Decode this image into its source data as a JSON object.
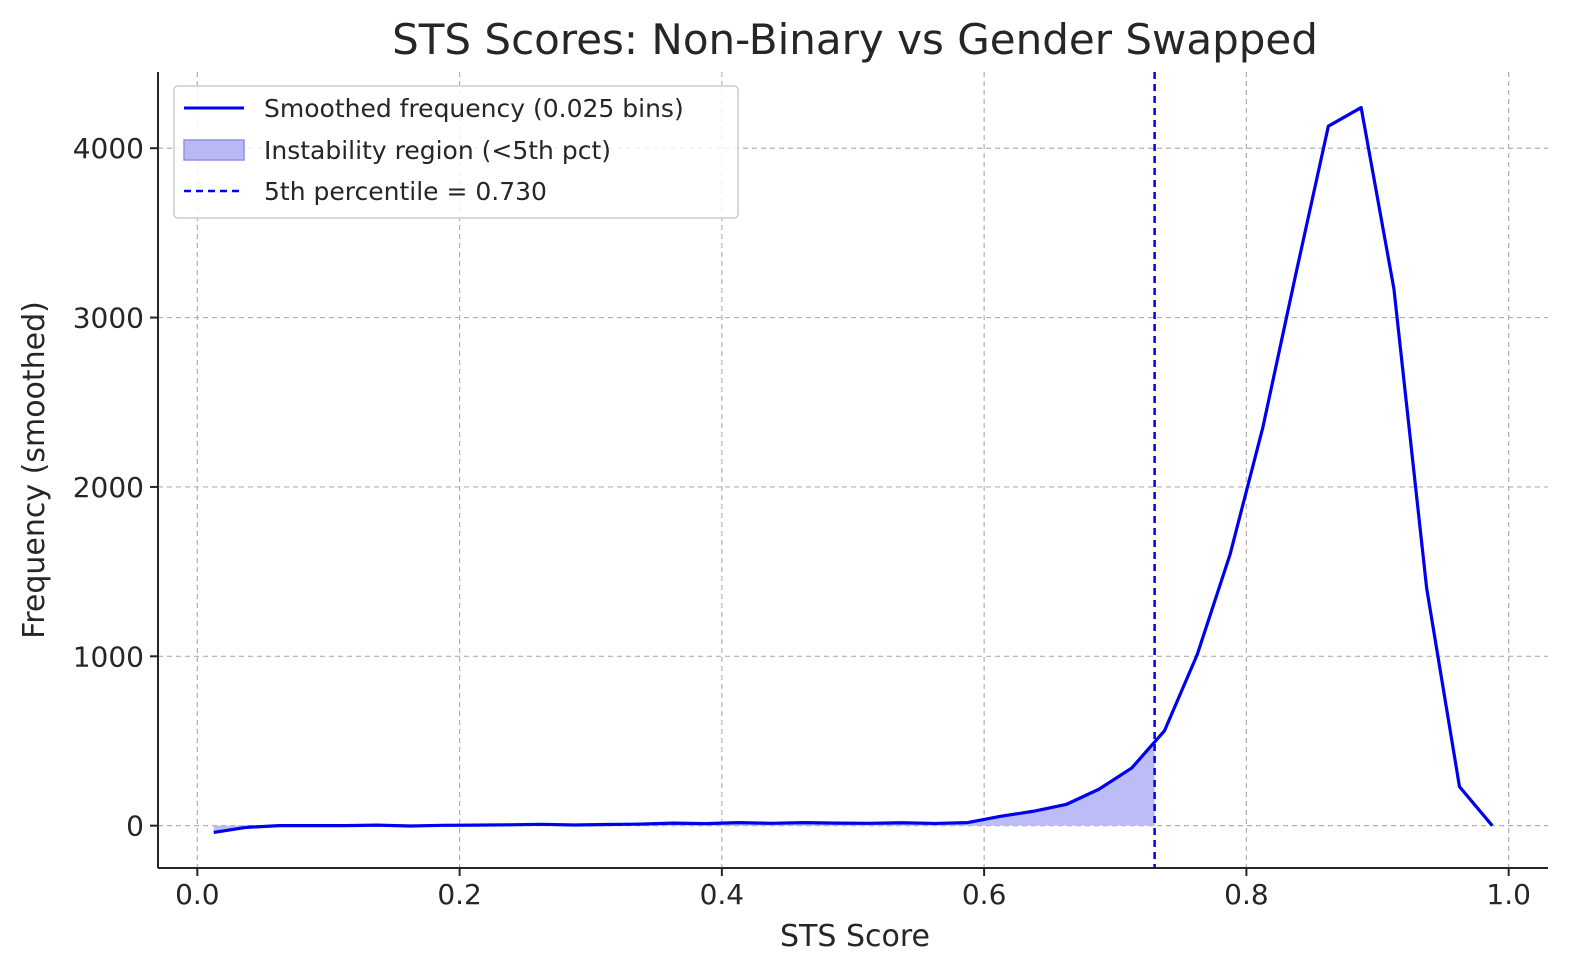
{
  "chart_data": {
    "type": "line",
    "title": "STS Scores: Non-Binary vs Gender Swapped",
    "xlabel": "STS Score",
    "ylabel": "Frequency (smoothed)",
    "xlim": [
      -0.03,
      1.03
    ],
    "ylim": [
      -250,
      4450
    ],
    "xticks": [
      0.0,
      0.2,
      0.4,
      0.6,
      0.8,
      1.0
    ],
    "xtick_labels": [
      "0.0",
      "0.2",
      "0.4",
      "0.6",
      "0.8",
      "1.0"
    ],
    "yticks": [
      0,
      1000,
      2000,
      3000,
      4000
    ],
    "ytick_labels": [
      "0",
      "1000",
      "2000",
      "3000",
      "4000"
    ],
    "grid": true,
    "legend_position": "top-left",
    "colors": {
      "line": "#0000ee",
      "fill": "#b8b8f5",
      "percentile_line": "#0000ee"
    },
    "series": [
      {
        "name": "Smoothed frequency (0.025 bins)",
        "x": [
          0.0125,
          0.0375,
          0.0625,
          0.0875,
          0.1125,
          0.1375,
          0.1625,
          0.1875,
          0.2125,
          0.2375,
          0.2625,
          0.2875,
          0.3125,
          0.3375,
          0.3625,
          0.3875,
          0.4125,
          0.4375,
          0.4625,
          0.4875,
          0.5125,
          0.5375,
          0.5625,
          0.5875,
          0.6125,
          0.6375,
          0.6625,
          0.6875,
          0.7125,
          0.7375,
          0.7625,
          0.7875,
          0.8125,
          0.8375,
          0.8625,
          0.8875,
          0.9125,
          0.9375,
          0.9625,
          0.9875
        ],
        "y": [
          -40,
          -10,
          0,
          0,
          0,
          3,
          -2,
          2,
          3,
          5,
          8,
          4,
          7,
          9,
          15,
          12,
          18,
          14,
          18,
          15,
          14,
          17,
          13,
          18,
          55,
          85,
          125,
          215,
          340,
          560,
          1010,
          1600,
          2350,
          3250,
          4130,
          4240,
          3170,
          1400,
          230,
          0
        ]
      }
    ],
    "fill_region": {
      "name": "Instability region (<5th pct)",
      "x_max": 0.73
    },
    "vline": {
      "name": "5th percentile = 0.730",
      "x": 0.73
    }
  }
}
